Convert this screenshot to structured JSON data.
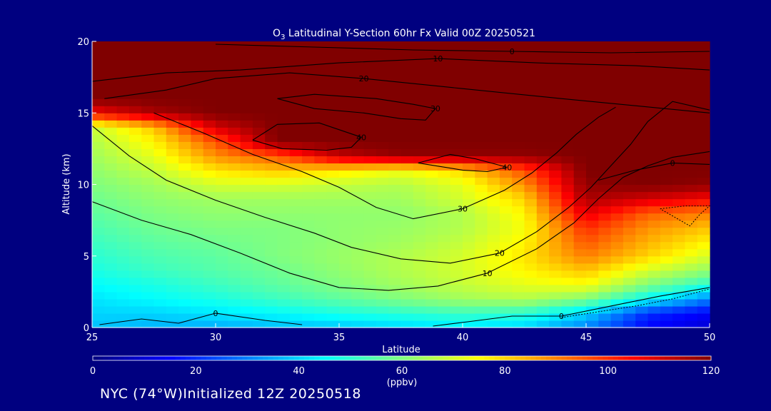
{
  "chart_data": {
    "type": "heatmap",
    "title": {
      "species": "O",
      "species_sub": "3",
      "rest": " Latitudinal Y-Section 60hr  Fx Valid 00Z 20250521"
    },
    "xlabel": "Latitude",
    "ylabel": "Altitude (km)",
    "xlim": [
      25,
      50
    ],
    "ylim": [
      0,
      20
    ],
    "x_ticks": [
      25,
      30,
      35,
      40,
      45,
      50
    ],
    "y_ticks": [
      0,
      5,
      10,
      15,
      20
    ],
    "colorbar": {
      "min": 0,
      "max": 120,
      "ticks": [
        0,
        20,
        40,
        60,
        80,
        100,
        120
      ],
      "unit": "(ppbv)",
      "colormap": "jet"
    },
    "field": {
      "description_units": "ozone mixing ratio ppbv",
      "latitudes": [
        25,
        27.5,
        30,
        32.5,
        35,
        37.5,
        40,
        42.5,
        45,
        47.5,
        50
      ],
      "altitudes": [
        0,
        1,
        2,
        3,
        4,
        5,
        6,
        7,
        8,
        9,
        10,
        11,
        12,
        13,
        14,
        15,
        16,
        17,
        18,
        19,
        20
      ],
      "values": [
        [
          38,
          36,
          35,
          37,
          38,
          40,
          42,
          40,
          30,
          15,
          10
        ],
        [
          40,
          40,
          42,
          45,
          48,
          50,
          52,
          50,
          40,
          20,
          14
        ],
        [
          42,
          45,
          48,
          52,
          56,
          60,
          64,
          66,
          60,
          45,
          30
        ],
        [
          45,
          48,
          52,
          56,
          60,
          64,
          68,
          72,
          74,
          60,
          50
        ],
        [
          48,
          52,
          55,
          58,
          62,
          66,
          70,
          76,
          82,
          70,
          62
        ],
        [
          50,
          54,
          56,
          60,
          63,
          66,
          70,
          78,
          90,
          80,
          70
        ],
        [
          52,
          56,
          58,
          60,
          62,
          64,
          68,
          76,
          95,
          84,
          76
        ],
        [
          54,
          58,
          60,
          60,
          62,
          63,
          66,
          74,
          100,
          88,
          82
        ],
        [
          56,
          60,
          62,
          62,
          62,
          62,
          66,
          76,
          108,
          94,
          90
        ],
        [
          58,
          62,
          64,
          64,
          64,
          64,
          70,
          80,
          115,
          110,
          105
        ],
        [
          60,
          64,
          70,
          70,
          68,
          66,
          72,
          88,
          118,
          120,
          118
        ],
        [
          62,
          68,
          78,
          82,
          78,
          74,
          80,
          96,
          120,
          120,
          120
        ],
        [
          64,
          72,
          88,
          95,
          112,
          118,
          118,
          118,
          120,
          120,
          120
        ],
        [
          66,
          76,
          95,
          120,
          120,
          120,
          120,
          120,
          120,
          120,
          120
        ],
        [
          68,
          82,
          110,
          120,
          120,
          120,
          120,
          120,
          120,
          120,
          120
        ],
        [
          105,
          115,
          120,
          120,
          120,
          120,
          120,
          120,
          120,
          120,
          120
        ],
        [
          120,
          120,
          120,
          120,
          120,
          120,
          120,
          120,
          120,
          120,
          120
        ],
        [
          120,
          120,
          120,
          120,
          120,
          120,
          120,
          120,
          120,
          120,
          120
        ],
        [
          120,
          120,
          120,
          120,
          120,
          120,
          120,
          120,
          120,
          120,
          120
        ],
        [
          120,
          120,
          120,
          120,
          120,
          120,
          120,
          120,
          120,
          120,
          120
        ],
        [
          120,
          120,
          120,
          120,
          120,
          120,
          120,
          120,
          120,
          120,
          120
        ]
      ]
    },
    "contours": [
      {
        "label": "0",
        "points": [
          [
            25.3,
            0.2
          ],
          [
            27,
            0.6
          ],
          [
            28.5,
            0.3
          ],
          [
            30,
            1.0
          ],
          [
            32,
            0.5
          ],
          [
            33.5,
            0.2
          ]
        ]
      },
      {
        "label": "0",
        "points": [
          [
            38.8,
            0.1
          ],
          [
            40.2,
            0.4
          ],
          [
            42,
            0.8
          ],
          [
            44,
            0.8
          ],
          [
            46,
            1.5
          ],
          [
            48,
            2.2
          ],
          [
            50,
            2.8
          ]
        ]
      },
      {
        "label": "10",
        "points": [
          [
            25,
            8.8
          ],
          [
            27,
            7.5
          ],
          [
            29,
            6.5
          ],
          [
            31,
            5.2
          ],
          [
            33,
            3.8
          ],
          [
            35,
            2.8
          ],
          [
            37,
            2.6
          ],
          [
            39,
            2.9
          ],
          [
            41,
            3.8
          ],
          [
            43,
            5.5
          ],
          [
            44.5,
            7.3
          ],
          [
            45.5,
            9.0
          ],
          [
            46.5,
            10.5
          ],
          [
            47.5,
            11.3
          ],
          [
            48.5,
            11.9
          ],
          [
            50,
            12.3
          ]
        ]
      },
      {
        "label": "20",
        "points": [
          [
            25,
            14.1
          ],
          [
            26.5,
            12.0
          ],
          [
            28,
            10.3
          ],
          [
            30,
            8.9
          ],
          [
            32,
            7.7
          ],
          [
            34,
            6.6
          ],
          [
            35.5,
            5.6
          ],
          [
            37.5,
            4.8
          ],
          [
            39.5,
            4.5
          ],
          [
            41.5,
            5.2
          ],
          [
            43,
            6.7
          ],
          [
            44.3,
            8.4
          ],
          [
            45.2,
            9.8
          ],
          [
            46,
            11.3
          ],
          [
            46.8,
            12.8
          ],
          [
            47.5,
            14.4
          ],
          [
            48.5,
            15.8
          ],
          [
            50,
            15.2
          ]
        ]
      },
      {
        "label": "30",
        "points": [
          [
            27.5,
            15.0
          ],
          [
            29.5,
            13.6
          ],
          [
            31.5,
            12.1
          ],
          [
            33.5,
            10.9
          ],
          [
            35,
            9.8
          ],
          [
            36.5,
            8.4
          ],
          [
            38,
            7.6
          ],
          [
            40,
            8.3
          ],
          [
            41.7,
            9.6
          ],
          [
            42.8,
            10.8
          ],
          [
            43.8,
            12.2
          ],
          [
            44.6,
            13.5
          ],
          [
            45.5,
            14.7
          ],
          [
            46.2,
            15.4
          ]
        ]
      },
      {
        "label": "40",
        "points": [
          [
            31.5,
            13.1
          ],
          [
            32.7,
            12.5
          ],
          [
            34.5,
            12.4
          ],
          [
            35.5,
            12.6
          ],
          [
            35.9,
            13.3
          ],
          [
            34.2,
            14.3
          ],
          [
            32.5,
            14.2
          ],
          [
            31.5,
            13.1
          ]
        ]
      },
      {
        "label": "40",
        "points": [
          [
            38.2,
            11.5
          ],
          [
            40,
            11.0
          ],
          [
            41,
            10.9
          ],
          [
            41.8,
            11.2
          ],
          [
            40.5,
            11.8
          ],
          [
            39.5,
            12.1
          ],
          [
            38.2,
            11.5
          ]
        ]
      },
      {
        "label": "30",
        "points": [
          [
            32.5,
            16.0
          ],
          [
            34,
            15.3
          ],
          [
            36,
            15.0
          ],
          [
            37.5,
            14.6
          ],
          [
            38.5,
            14.5
          ],
          [
            38.9,
            15.3
          ],
          [
            38,
            15.6
          ],
          [
            36.5,
            16.0
          ],
          [
            34,
            16.3
          ],
          [
            32.5,
            16.0
          ]
        ]
      },
      {
        "label": "20",
        "points": [
          [
            25.5,
            16.0
          ],
          [
            28,
            16.6
          ],
          [
            30,
            17.4
          ],
          [
            33,
            17.8
          ],
          [
            36,
            17.4
          ],
          [
            40,
            16.7
          ],
          [
            44,
            16.0
          ],
          [
            47,
            15.5
          ],
          [
            50,
            15.0
          ]
        ]
      },
      {
        "label": "10",
        "points": [
          [
            25,
            17.2
          ],
          [
            28,
            17.8
          ],
          [
            31,
            18.0
          ],
          [
            35,
            18.5
          ],
          [
            39,
            18.8
          ],
          [
            43,
            18.5
          ],
          [
            47,
            18.3
          ],
          [
            50,
            18.0
          ]
        ]
      },
      {
        "label": "0",
        "points": [
          [
            30,
            19.8
          ],
          [
            34,
            19.6
          ],
          [
            38,
            19.4
          ],
          [
            42,
            19.3
          ],
          [
            46,
            19.2
          ],
          [
            50,
            19.3
          ]
        ]
      },
      {
        "label": "0",
        "points": [
          [
            45.5,
            10.3
          ],
          [
            47,
            11.0
          ],
          [
            48.5,
            11.5
          ],
          [
            50,
            11.4
          ]
        ]
      }
    ],
    "dotted_contours": [
      {
        "points": [
          [
            48.0,
            8.3
          ],
          [
            49,
            8.5
          ],
          [
            50,
            8.5
          ],
          [
            49.6,
            7.9
          ],
          [
            49.2,
            7.1
          ],
          [
            48.5,
            7.8
          ],
          [
            48.0,
            8.3
          ]
        ]
      },
      {
        "points": [
          [
            44,
            0.7
          ],
          [
            45.5,
            1.1
          ],
          [
            47,
            1.5
          ],
          [
            48.5,
            2.0
          ],
          [
            50,
            2.7
          ]
        ]
      }
    ]
  },
  "footer": {
    "text": "NYC (74°W)Initialized 12Z 20250518"
  }
}
